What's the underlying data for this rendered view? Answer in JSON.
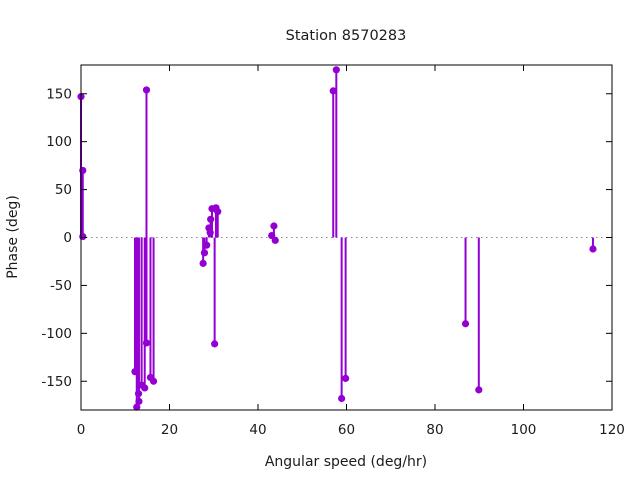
{
  "chart_data": {
    "type": "scatter",
    "style": "impulses-with-points (stem plot)",
    "title": "Station 8570283",
    "xlabel": "Angular speed (deg/hr)",
    "ylabel": "Phase (deg)",
    "xlim": [
      0,
      120
    ],
    "ylim": [
      -180,
      180
    ],
    "xticks": [
      0,
      20,
      40,
      60,
      80,
      100,
      120
    ],
    "yticks": [
      -150,
      -100,
      -50,
      0,
      50,
      100,
      150
    ],
    "grid": false,
    "zero_line_dotted": true,
    "legend": "none",
    "series_color": "#9400d3",
    "axis_color": "#000000",
    "zero_line_color": "#888888",
    "background_color": "#ffffff",
    "points": [
      [
        0,
        147
      ],
      [
        0.4,
        70
      ],
      [
        0.4,
        1
      ],
      [
        12.2,
        -140
      ],
      [
        12.6,
        -177
      ],
      [
        13.0,
        -163
      ],
      [
        13.1,
        -171
      ],
      [
        13.7,
        -154
      ],
      [
        14.4,
        -157
      ],
      [
        14.8,
        154
      ],
      [
        14.8,
        -110
      ],
      [
        15.7,
        -146
      ],
      [
        16.4,
        -150
      ],
      [
        27.6,
        -27
      ],
      [
        27.9,
        -16
      ],
      [
        28.4,
        -8
      ],
      [
        28.9,
        10
      ],
      [
        29.2,
        5
      ],
      [
        29.3,
        19
      ],
      [
        29.6,
        30
      ],
      [
        30.2,
        -111
      ],
      [
        30.5,
        31
      ],
      [
        30.9,
        27
      ],
      [
        43.1,
        2
      ],
      [
        43.6,
        12
      ],
      [
        43.9,
        -3
      ],
      [
        57.0,
        153
      ],
      [
        57.7,
        175
      ],
      [
        58.9,
        -168
      ],
      [
        59.8,
        -147
      ],
      [
        86.9,
        -90
      ],
      [
        89.9,
        -159
      ],
      [
        115.7,
        -12
      ]
    ]
  }
}
